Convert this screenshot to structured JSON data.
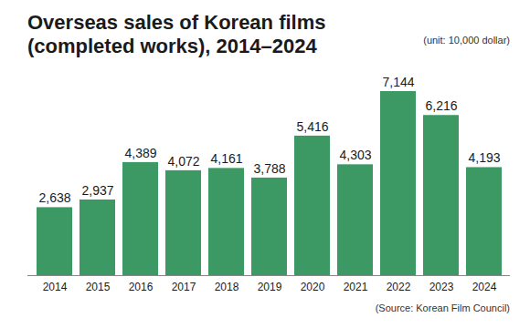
{
  "chart_data": {
    "type": "bar",
    "title": "Overseas sales of Korean films (completed works), 2014–2024",
    "subtitle": "(unit: 10,000 dollar)",
    "source": "(Source: Korean Film Council)",
    "categories": [
      "2014",
      "2015",
      "2016",
      "2017",
      "2018",
      "2019",
      "2020",
      "2021",
      "2022",
      "2023",
      "2024"
    ],
    "values": [
      2638,
      2937,
      4389,
      4072,
      4161,
      3788,
      5416,
      4303,
      7144,
      6216,
      4193
    ],
    "value_labels": [
      "2,638",
      "2,937",
      "4,389",
      "4,072",
      "4,161",
      "3,788",
      "5,416",
      "4,303",
      "7,144",
      "6,216",
      "4,193"
    ],
    "color": "#3d9964",
    "ylim": [
      0,
      7144
    ],
    "data_labels": true,
    "tick_labels": "x",
    "grid": false
  }
}
